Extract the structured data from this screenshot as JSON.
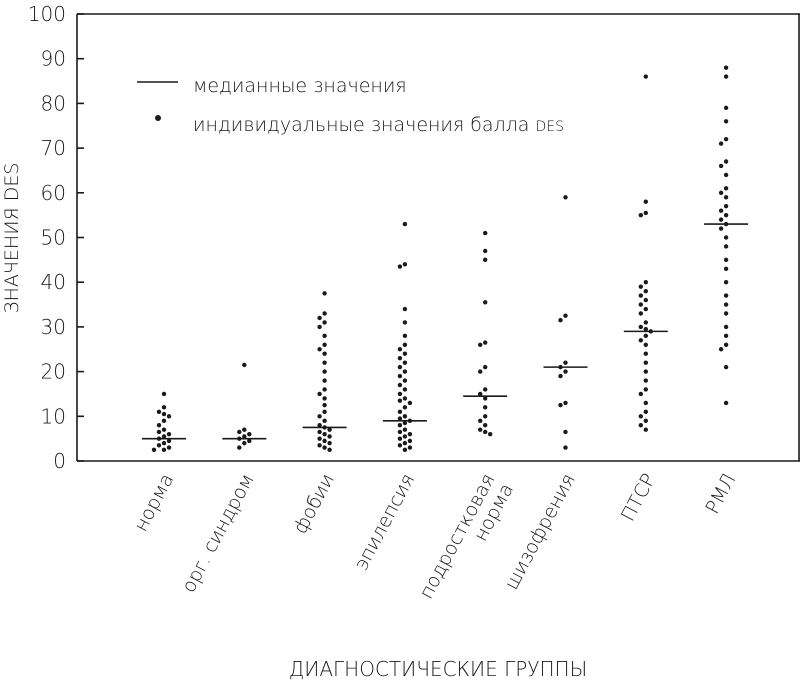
{
  "chart_data": {
    "type": "scatter",
    "xlabel": "ДИАГНОСТИЧЕСКИЕ ГРУППЫ",
    "ylabel": "ЗНАЧЕНИЯ DES",
    "ylim": [
      0,
      100
    ],
    "yticks": [
      0,
      10,
      20,
      30,
      40,
      50,
      60,
      70,
      80,
      90,
      100
    ],
    "grid": false,
    "legend": {
      "placement": "top-left",
      "entries": [
        {
          "marker": "line",
          "label": "медианные значения"
        },
        {
          "marker": "dot",
          "label_main": "индивидуальные значения балла",
          "label_small": "DES"
        }
      ]
    },
    "categories": [
      [
        "норма"
      ],
      [
        "орг. синдром"
      ],
      [
        "фобии"
      ],
      [
        "эпилепсия"
      ],
      [
        "подростковая",
        "норма"
      ],
      [
        "шизофрения"
      ],
      [
        "ПТСР"
      ],
      [
        "РМЛ"
      ]
    ],
    "medians": [
      5,
      5,
      7.5,
      9,
      14.5,
      21,
      29,
      53
    ],
    "points": [
      [
        15,
        12,
        11,
        10.5,
        10,
        9,
        8,
        7,
        6.5,
        6,
        5.5,
        5,
        4.5,
        4,
        3.5,
        3,
        2.5,
        2.5
      ],
      [
        21.5,
        7,
        6.5,
        6,
        5.5,
        5,
        4.5,
        4,
        3
      ],
      [
        37.5,
        33,
        32,
        31,
        30,
        28,
        26,
        25,
        24,
        22,
        20,
        18,
        16,
        15,
        14,
        12.5,
        11,
        10,
        9,
        8,
        7.5,
        7,
        6.5,
        6,
        5.5,
        5,
        4.5,
        4,
        3.5,
        3,
        2.5
      ],
      [
        53,
        44,
        43.5,
        34,
        31,
        28,
        26,
        25,
        24,
        23,
        22,
        21,
        20,
        19,
        18,
        17,
        16,
        15,
        14,
        13.5,
        13,
        12,
        11,
        10,
        9.5,
        9,
        8.5,
        8,
        7,
        6.5,
        6,
        5.5,
        5,
        4.5,
        4,
        3.5,
        3,
        2.5
      ],
      [
        51,
        47,
        45,
        35.5,
        26.5,
        26,
        21,
        20,
        16,
        15,
        14,
        12,
        10,
        9,
        8,
        7,
        6.5,
        6
      ],
      [
        59,
        32.5,
        31.5,
        22,
        21,
        20,
        19,
        13,
        12.5,
        6.5,
        3
      ],
      [
        86,
        58,
        55.5,
        55,
        40,
        39,
        38,
        37,
        36,
        35,
        34,
        33,
        31,
        30,
        29.5,
        29,
        28,
        27,
        26,
        24,
        22,
        20,
        18,
        16,
        15,
        13,
        11,
        10,
        9,
        8,
        7
      ],
      [
        88,
        86,
        79,
        76,
        72,
        71,
        67,
        66,
        64,
        61,
        60,
        59,
        57,
        56,
        55,
        54,
        53,
        52,
        50,
        48,
        45,
        43,
        40,
        37,
        35,
        33,
        30,
        28,
        26,
        25,
        21,
        13
      ]
    ]
  }
}
